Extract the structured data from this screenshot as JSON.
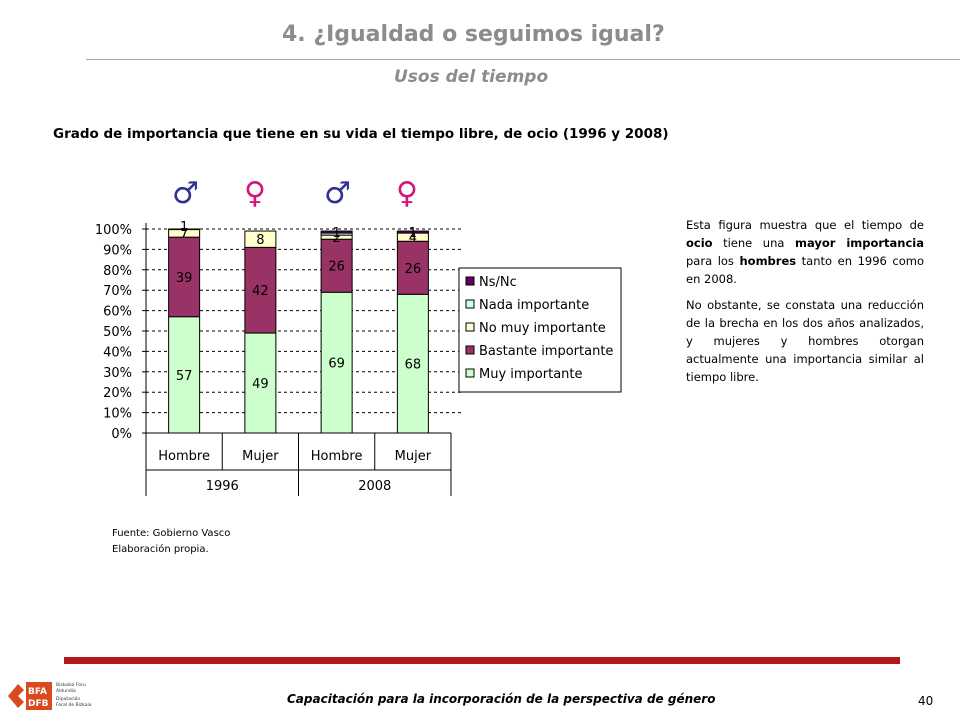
{
  "header": {
    "title": "4. ¿Igualdad o seguimos igual?",
    "subtitle": "Usos del tiempo"
  },
  "chart_heading": "Grado de importancia que tiene en su vida el tiempo libre, de ocio (1996 y 2008)",
  "gender_symbols": [
    "♂",
    "♀",
    "♂",
    "♀"
  ],
  "colors": {
    "male_symbol": "#2e3192",
    "female_symbol": "#d4147c",
    "footer_rule": "#b31b1b"
  },
  "chart_data": {
    "type": "bar",
    "stacked": true,
    "categories": [
      "Hombre",
      "Mujer",
      "Hombre",
      "Mujer"
    ],
    "groups": [
      {
        "label": "1996",
        "categories": [
          0,
          1
        ]
      },
      {
        "label": "2008",
        "categories": [
          2,
          3
        ]
      }
    ],
    "series": [
      {
        "name": "Muy importante",
        "color": "#ccffcc",
        "values": [
          57,
          49,
          69,
          68
        ],
        "labels": [
          "57",
          "49",
          "69",
          "68"
        ]
      },
      {
        "name": "Bastante importante",
        "color": "#993366",
        "values": [
          39,
          42,
          26,
          26
        ],
        "labels": [
          "39",
          "42",
          "26",
          "26"
        ]
      },
      {
        "name": "No muy importante",
        "color": "#ffffcc",
        "values": [
          7,
          8,
          2,
          4
        ],
        "labels": [
          "7",
          "8",
          "2",
          "4"
        ]
      },
      {
        "name": "Nada importante",
        "color": "#ccffff",
        "values": [
          0,
          0,
          1,
          0
        ],
        "labels": [
          "",
          "",
          "",
          ""
        ]
      },
      {
        "name": "Ns/Nc",
        "color": "#660066",
        "values": [
          1,
          0,
          1,
          1
        ],
        "labels": [
          "1",
          "",
          "1",
          "1"
        ]
      }
    ],
    "legend_order": [
      "Ns/Nc",
      "Nada importante",
      "No muy importante",
      "Bastante importante",
      "Muy importante"
    ],
    "y_ticks": [
      "0%",
      "10%",
      "20%",
      "30%",
      "40%",
      "50%",
      "60%",
      "70%",
      "80%",
      "90%",
      "100%"
    ],
    "ylim": [
      0,
      100
    ],
    "grid": true,
    "legend_position": "right"
  },
  "description": {
    "paragraph1_runs": [
      {
        "text": "Esta figura muestra que el tiempo de ",
        "bold": false
      },
      {
        "text": "ocio",
        "bold": true
      },
      {
        "text": " tiene una ",
        "bold": false
      },
      {
        "text": "mayor importancia",
        "bold": true
      },
      {
        "text": " para los ",
        "bold": false
      },
      {
        "text": "hombres",
        "bold": true
      },
      {
        "text": " tanto en 1996 como en 2008.",
        "bold": false
      }
    ],
    "paragraph2": "No obstante, se constata una reducción de la brecha en los dos años analizados, y mujeres y hombres otorgan actualmente una importancia similar al tiempo libre."
  },
  "source": {
    "line1": "Fuente: Gobierno Vasco",
    "line2": "Elaboración propia."
  },
  "footer": {
    "caption": "Capacitación para la incorporación de la perspectiva de género",
    "page_number": "40"
  },
  "logo": {
    "line1": "BFA",
    "line2": "DFB",
    "text1": "Bizkaiko Foru",
    "text2": "Aldundia",
    "text3": "Diputación",
    "text4": "Foral de Bizkaia"
  }
}
